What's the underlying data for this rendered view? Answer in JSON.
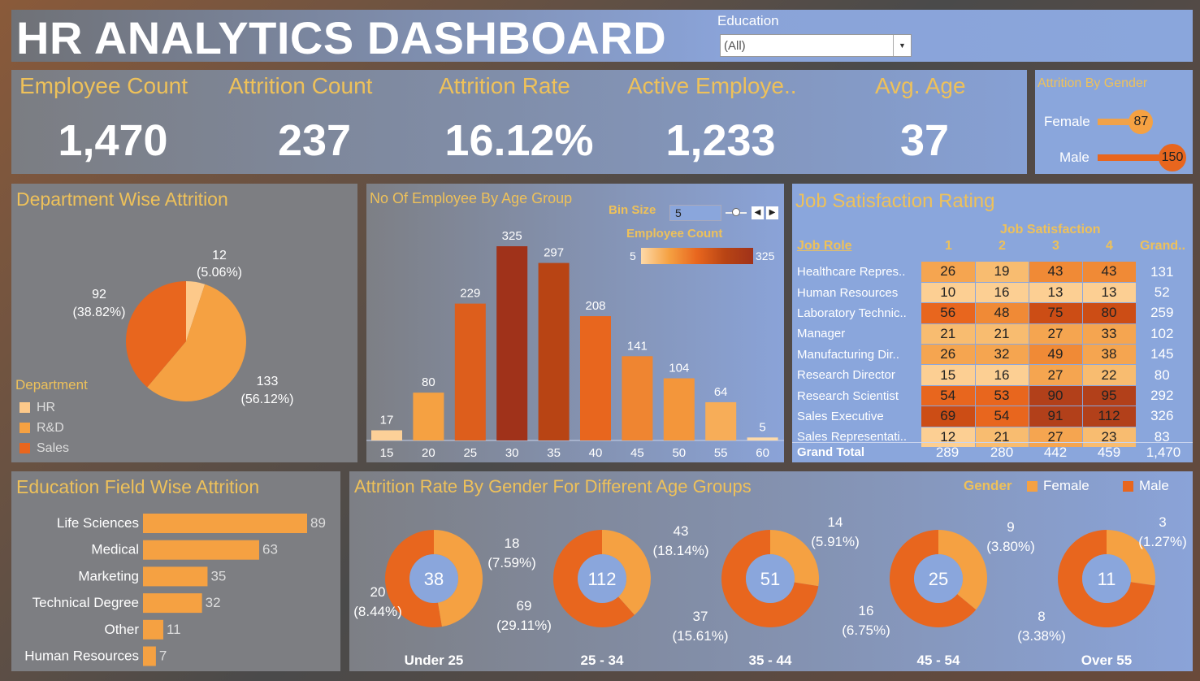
{
  "header": {
    "title": "HR ANALYTICS DASHBOARD",
    "filter_label": "Education",
    "filter_value": "(All)"
  },
  "kpis": [
    {
      "label": "Employee Count",
      "value": "1,470"
    },
    {
      "label": "Attrition Count",
      "value": "237"
    },
    {
      "label": "Attrition Rate",
      "value": "16.12%"
    },
    {
      "label": "Active Employe..",
      "value": "1,233"
    },
    {
      "label": "Avg. Age",
      "value": "37"
    }
  ],
  "attrition_by_gender": {
    "title": "Attrition By Gender",
    "items": [
      {
        "label": "Female",
        "value": "87"
      },
      {
        "label": "Male",
        "value": "150"
      }
    ]
  },
  "colors": {
    "gold": "#eec15a",
    "light": "#fdc98a",
    "mid": "#f5a142",
    "orange": "#e8661e",
    "dark": "#b84414",
    "darkest": "#a0321a"
  },
  "chart_data": [
    {
      "type": "pie",
      "title": "Department Wise Attrition",
      "legend_title": "Department",
      "categories": [
        "HR",
        "R&D",
        "Sales"
      ],
      "values": [
        12,
        133,
        92
      ],
      "labels": [
        "12",
        "(5.06%)",
        "133",
        "(56.12%)",
        "92",
        "(38.82%)"
      ]
    },
    {
      "type": "bar",
      "title": "No Of Employee By Age Group",
      "bin_label": "Bin Size",
      "bin_value": "5",
      "legend_title": "Employee Count",
      "legend_min": "5",
      "legend_max": "325",
      "categories": [
        "15",
        "20",
        "25",
        "30",
        "35",
        "40",
        "45",
        "50",
        "55",
        "60"
      ],
      "values": [
        17,
        80,
        229,
        325,
        297,
        208,
        141,
        104,
        64,
        5
      ]
    },
    {
      "type": "heatmap",
      "title": "Job Satisfaction Rating",
      "column_title": "Job Satisfaction",
      "row_header": "Job Role",
      "columns": [
        "1",
        "2",
        "3",
        "4"
      ],
      "total_header": "Grand..",
      "rows": [
        {
          "role": "Healthcare Repres..",
          "values": [
            26,
            19,
            43,
            43
          ],
          "total": "131"
        },
        {
          "role": "Human Resources",
          "values": [
            10,
            16,
            13,
            13
          ],
          "total": "52"
        },
        {
          "role": "Laboratory Technic..",
          "values": [
            56,
            48,
            75,
            80
          ],
          "total": "259"
        },
        {
          "role": "Manager",
          "values": [
            21,
            21,
            27,
            33
          ],
          "total": "102"
        },
        {
          "role": "Manufacturing Dir..",
          "values": [
            26,
            32,
            49,
            38
          ],
          "total": "145"
        },
        {
          "role": "Research Director",
          "values": [
            15,
            16,
            27,
            22
          ],
          "total": "80"
        },
        {
          "role": "Research Scientist",
          "values": [
            54,
            53,
            90,
            95
          ],
          "total": "292"
        },
        {
          "role": "Sales Executive",
          "values": [
            69,
            54,
            91,
            112
          ],
          "total": "326"
        },
        {
          "role": "Sales Representati..",
          "values": [
            12,
            21,
            27,
            23
          ],
          "total": "83"
        }
      ],
      "grand_total": {
        "label": "Grand Total",
        "values": [
          "289",
          "280",
          "442",
          "459"
        ],
        "total": "1,470"
      }
    },
    {
      "type": "bar",
      "title": "Education Field Wise Attrition",
      "orientation": "horizontal",
      "categories": [
        "Life Sciences",
        "Medical",
        "Marketing",
        "Technical Degree",
        "Other",
        "Human Resources"
      ],
      "values": [
        89,
        63,
        35,
        32,
        11,
        7
      ]
    },
    {
      "type": "pie",
      "title": "Attrition Rate By Gender For Different Age Groups",
      "legend_title": "Gender",
      "series_names": [
        "Female",
        "Male"
      ],
      "groups": [
        {
          "label": "Under 25",
          "total": "38",
          "female": 18,
          "male": 20,
          "female_lbl": [
            "18",
            "(7.59%)"
          ],
          "male_lbl": [
            "20",
            "(8.44%)"
          ]
        },
        {
          "label": "25 - 34",
          "total": "112",
          "female": 43,
          "male": 69,
          "female_lbl": [
            "43",
            "(18.14%)"
          ],
          "male_lbl": [
            "69",
            "(29.11%)"
          ]
        },
        {
          "label": "35 - 44",
          "total": "51",
          "female": 14,
          "male": 37,
          "female_lbl": [
            "14",
            "(5.91%)"
          ],
          "male_lbl": [
            "37",
            "(15.61%)"
          ]
        },
        {
          "label": "45 - 54",
          "total": "25",
          "female": 9,
          "male": 16,
          "female_lbl": [
            "9",
            "(3.80%)"
          ],
          "male_lbl": [
            "16",
            "(6.75%)"
          ]
        },
        {
          "label": "Over 55",
          "total": "11",
          "female": 3,
          "male": 8,
          "female_lbl": [
            "3",
            "(1.27%)"
          ],
          "male_lbl": [
            "8",
            "(3.38%)"
          ]
        }
      ]
    }
  ]
}
